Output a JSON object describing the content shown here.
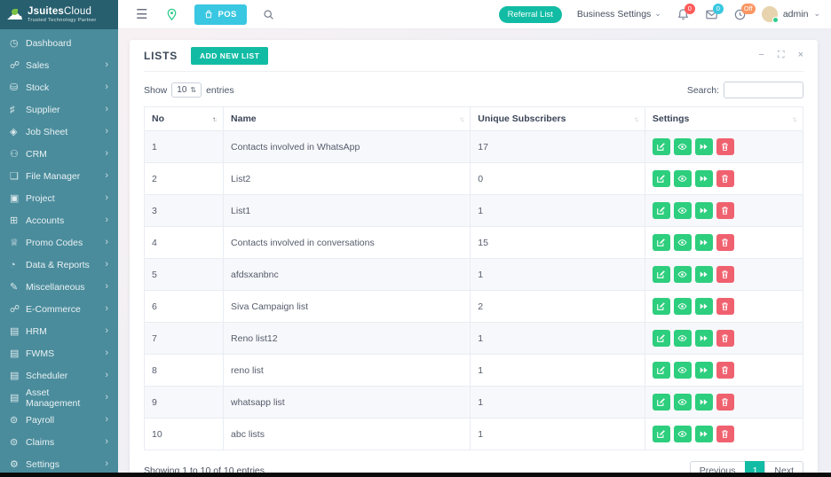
{
  "brand": {
    "name_bold": "Jsuites",
    "name_light": "Cloud",
    "tagline": "Trusted Technology Partner"
  },
  "topbar": {
    "pos_label": "POS",
    "referral_label": "Referral List",
    "business_settings_label": "Business Settings",
    "notification_count": "0",
    "message_count": "0",
    "clock_status": "Off",
    "username": "admin"
  },
  "sidebar": {
    "items": [
      {
        "label": "Dashboard",
        "icon": "◷",
        "icon_name": "gauge-icon",
        "expandable": false
      },
      {
        "label": "Sales",
        "icon": "☍",
        "icon_name": "cart-icon",
        "expandable": true
      },
      {
        "label": "Stock",
        "icon": "⛁",
        "icon_name": "stack-icon",
        "expandable": true
      },
      {
        "label": "Supplier",
        "icon": "♯",
        "icon_name": "sliders-icon",
        "expandable": true
      },
      {
        "label": "Job Sheet",
        "icon": "◈",
        "icon_name": "diamond-icon",
        "expandable": true
      },
      {
        "label": "CRM",
        "icon": "⚇",
        "icon_name": "people-icon",
        "expandable": true
      },
      {
        "label": "File Manager",
        "icon": "❏",
        "icon_name": "folder-icon",
        "expandable": true
      },
      {
        "label": "Project",
        "icon": "▣",
        "icon_name": "briefcase-icon",
        "expandable": true
      },
      {
        "label": "Accounts",
        "icon": "⊞",
        "icon_name": "calculator-icon",
        "expandable": true
      },
      {
        "label": "Promo Codes",
        "icon": "♕",
        "icon_name": "trophy-icon",
        "expandable": true
      },
      {
        "label": "Data & Reports",
        "icon": "◔",
        "icon_name": "clock-icon",
        "expandable": true
      },
      {
        "label": "Miscellaneous",
        "icon": "✎",
        "icon_name": "pencil-icon",
        "expandable": true
      },
      {
        "label": "E-Commerce",
        "icon": "☍",
        "icon_name": "cart-icon",
        "expandable": true
      },
      {
        "label": "HRM",
        "icon": "▤",
        "icon_name": "document-icon",
        "expandable": true
      },
      {
        "label": "FWMS",
        "icon": "▤",
        "icon_name": "document-icon",
        "expandable": true
      },
      {
        "label": "Scheduler",
        "icon": "▤",
        "icon_name": "document-icon",
        "expandable": true
      },
      {
        "label": "Asset Management",
        "icon": "▤",
        "icon_name": "document-icon",
        "expandable": true
      },
      {
        "label": "Payroll",
        "icon": "⊜",
        "icon_name": "money-icon",
        "expandable": true
      },
      {
        "label": "Claims",
        "icon": "⊜",
        "icon_name": "money-icon",
        "expandable": true
      },
      {
        "label": "Settings",
        "icon": "⚙",
        "icon_name": "gear-icon",
        "expandable": true
      }
    ]
  },
  "panel": {
    "title": "LISTS",
    "add_button_label": "ADD NEW LIST",
    "show_label": "Show",
    "page_size": "10",
    "entries_label": "entries",
    "search_label": "Search:",
    "search_value": "",
    "table": {
      "columns": [
        "No",
        "Name",
        "Unique Subscribers",
        "Settings"
      ],
      "rows": [
        {
          "no": "1",
          "name": "Contacts involved in WhatsApp",
          "subscribers": "17"
        },
        {
          "no": "2",
          "name": "List2",
          "subscribers": "0"
        },
        {
          "no": "3",
          "name": "List1",
          "subscribers": "1"
        },
        {
          "no": "4",
          "name": "Contacts involved in conversations",
          "subscribers": "15"
        },
        {
          "no": "5",
          "name": "afdsxanbnc",
          "subscribers": "1"
        },
        {
          "no": "6",
          "name": "Siva Campaign list",
          "subscribers": "2"
        },
        {
          "no": "7",
          "name": "Reno list12",
          "subscribers": "1"
        },
        {
          "no": "8",
          "name": "reno list",
          "subscribers": "1"
        },
        {
          "no": "9",
          "name": "whatsapp list",
          "subscribers": "1"
        },
        {
          "no": "10",
          "name": "abc lists",
          "subscribers": "1"
        }
      ],
      "actions": [
        "edit",
        "view",
        "forward",
        "delete"
      ]
    },
    "footer": {
      "summary": "Showing 1 to 10 of 10 entries",
      "previous_label": "Previous",
      "current_page": "1",
      "next_label": "Next"
    }
  },
  "colors": {
    "sidebar": "#4a8c9c",
    "logo_bg": "#275f6e",
    "teal_accent": "#12bca4",
    "cyan_accent": "#3ac7e1",
    "action_green": "#2dce7d",
    "action_red": "#f0616f",
    "badge_red": "#ff5b5b",
    "badge_orange": "#fa9662"
  }
}
